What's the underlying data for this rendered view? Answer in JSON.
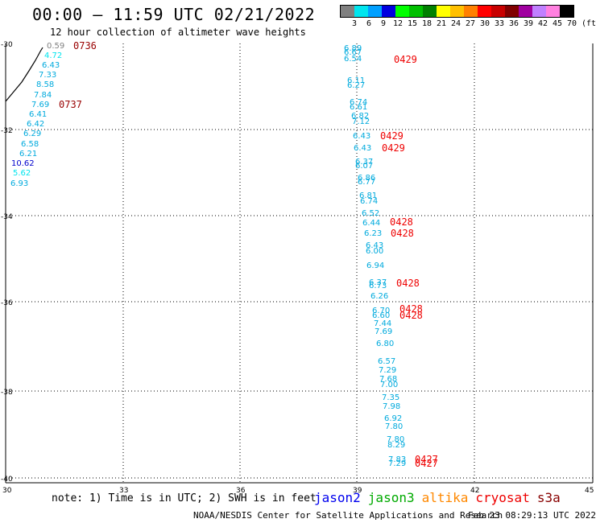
{
  "header": {
    "title": "00:00 — 11:59 UTC 02/21/2022",
    "subtitle": "12 hour collection of altimeter wave heights"
  },
  "legend": {
    "colors": [
      "#808080",
      "#00e5ee",
      "#00a0ff",
      "#0000e0",
      "#00ff00",
      "#00c000",
      "#008000",
      "#ffff00",
      "#ffc000",
      "#ff8000",
      "#ff0000",
      "#c80000",
      "#800000",
      "#a000a0",
      "#c080ff",
      "#ff80e0",
      "#000000"
    ],
    "labels": [
      "3",
      "6",
      "9",
      "12",
      "15",
      "18",
      "21",
      "24",
      "27",
      "30",
      "33",
      "36",
      "39",
      "42",
      "45",
      "70"
    ],
    "unit": "(ft)"
  },
  "axes": {
    "y_labels": [
      "-30",
      "-32",
      "-34",
      "-36",
      "-38",
      "-40"
    ],
    "x_labels": [
      "30",
      "33",
      "36",
      "39",
      "42",
      "45"
    ]
  },
  "observations": {
    "wave_values": [
      {
        "t": "0.59",
        "c": "#808080"
      },
      {
        "t": "4.72",
        "c": "#00e5ee"
      },
      {
        "t": "6.43",
        "c": "#00aadd"
      },
      {
        "t": "7.33",
        "c": "#00aadd"
      },
      {
        "t": "8.58",
        "c": "#00aadd"
      },
      {
        "t": "7.84",
        "c": "#00aadd"
      },
      {
        "t": "7.69",
        "c": "#00aadd"
      },
      {
        "t": "6.41",
        "c": "#00aadd"
      },
      {
        "t": "6.42",
        "c": "#00aadd"
      },
      {
        "t": "6.29",
        "c": "#00aadd"
      },
      {
        "t": "6.58",
        "c": "#00aadd"
      },
      {
        "t": "6.21",
        "c": "#00aadd"
      },
      {
        "t": "10.62",
        "c": "#0000cc"
      },
      {
        "t": "5.62",
        "c": "#00e5ee"
      },
      {
        "t": "6.93",
        "c": "#00aadd"
      },
      {
        "t": "6.89",
        "c": "#00aadd"
      },
      {
        "t": "6.67",
        "c": "#00aadd"
      },
      {
        "t": "6.54",
        "c": "#00aadd"
      },
      {
        "t": "6.11",
        "c": "#00aadd"
      },
      {
        "t": "6.27",
        "c": "#00aadd"
      },
      {
        "t": "6.74",
        "c": "#00aadd"
      },
      {
        "t": "6.61",
        "c": "#00aadd"
      },
      {
        "t": "6.82",
        "c": "#00aadd"
      },
      {
        "t": "7.12",
        "c": "#00aadd"
      },
      {
        "t": "6.43",
        "c": "#00aadd"
      },
      {
        "t": "6.43",
        "c": "#00aadd"
      },
      {
        "t": "6.37",
        "c": "#00aadd"
      },
      {
        "t": "6.07",
        "c": "#00aadd"
      },
      {
        "t": "6.86",
        "c": "#00aadd"
      },
      {
        "t": "6.77",
        "c": "#00aadd"
      },
      {
        "t": "6.81",
        "c": "#00aadd"
      },
      {
        "t": "6.74",
        "c": "#00aadd"
      },
      {
        "t": "6.52",
        "c": "#00aadd"
      },
      {
        "t": "6.44",
        "c": "#00aadd"
      },
      {
        "t": "6.23",
        "c": "#00aadd"
      },
      {
        "t": "6.43",
        "c": "#00aadd"
      },
      {
        "t": "6.00",
        "c": "#00aadd"
      },
      {
        "t": "6.94",
        "c": "#00aadd"
      },
      {
        "t": "6.37",
        "c": "#00aadd"
      },
      {
        "t": "6.73",
        "c": "#00aadd"
      },
      {
        "t": "6.26",
        "c": "#00aadd"
      },
      {
        "t": "6.70",
        "c": "#00aadd"
      },
      {
        "t": "6.60",
        "c": "#00aadd"
      },
      {
        "t": "7.44",
        "c": "#00aadd"
      },
      {
        "t": "7.69",
        "c": "#00aadd"
      },
      {
        "t": "6.80",
        "c": "#00aadd"
      },
      {
        "t": "6.57",
        "c": "#00aadd"
      },
      {
        "t": "7.29",
        "c": "#00aadd"
      },
      {
        "t": "7.68",
        "c": "#00aadd"
      },
      {
        "t": "7.00",
        "c": "#00aadd"
      },
      {
        "t": "7.35",
        "c": "#00aadd"
      },
      {
        "t": "7.98",
        "c": "#00aadd"
      },
      {
        "t": "6.92",
        "c": "#00aadd"
      },
      {
        "t": "7.80",
        "c": "#00aadd"
      },
      {
        "t": "7.80",
        "c": "#00aadd"
      },
      {
        "t": "8.29",
        "c": "#00aadd"
      },
      {
        "t": "7.83",
        "c": "#00aadd"
      },
      {
        "t": "7.29",
        "c": "#00aadd"
      }
    ],
    "pass_times": [
      {
        "t": "0736",
        "c": "#990000"
      },
      {
        "t": "0737",
        "c": "#990000"
      },
      {
        "t": "0429",
        "c": "#ee0000"
      },
      {
        "t": "0429",
        "c": "#ee0000"
      },
      {
        "t": "0429",
        "c": "#ee0000"
      },
      {
        "t": "0428",
        "c": "#ee0000"
      },
      {
        "t": "0428",
        "c": "#ee0000"
      },
      {
        "t": "0428",
        "c": "#ee0000"
      },
      {
        "t": "0428",
        "c": "#ee0000"
      },
      {
        "t": "0428",
        "c": "#ee0000"
      },
      {
        "t": "0427",
        "c": "#ee0000"
      },
      {
        "t": "0427",
        "c": "#ee0000"
      }
    ]
  },
  "footer": {
    "note": "note: 1) Time is in UTC; 2) SWH is in feet",
    "satellites": [
      {
        "name": "jason2",
        "color": "#0000ee"
      },
      {
        "name": "jason3",
        "color": "#00aa00"
      },
      {
        "name": "altika",
        "color": "#ff8800"
      },
      {
        "name": "cryosat",
        "color": "#ee0000"
      },
      {
        "name": "s3a",
        "color": "#880000"
      }
    ],
    "credit": "NOAA/NESDIS Center for Satellite Applications and Research",
    "timestamp": "Feb 23 08:29:13 UTC 2022"
  }
}
